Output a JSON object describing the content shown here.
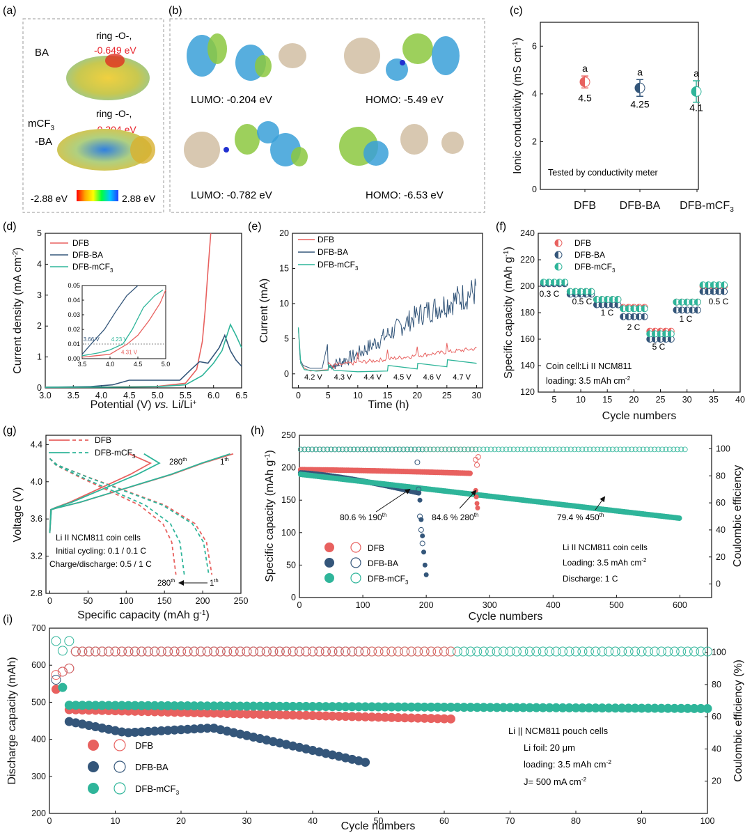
{
  "panels": {
    "a": {
      "letter": "(a)",
      "mol1": "BA",
      "mol2_line1": "mCF",
      "mol2_sub": "3",
      "mol2_line2": "-BA",
      "ring1": "ring -O-,",
      "ring1_val": "-0.649 eV",
      "ring2": "ring -O-,",
      "ring2_val": "-0.304 eV",
      "scale_min": "-2.88 eV",
      "scale_max": "2.88 eV"
    },
    "b": {
      "letter": "(b)",
      "labels": [
        "LUMO:  -0.204 eV",
        "HOMO:  -5.49 eV",
        "LUMO:  -0.782 eV",
        "HOMO:  -6.53 eV"
      ]
    },
    "c": {
      "letter": "(c)",
      "note": "Tested by conductivity meter",
      "mark": "a"
    },
    "d": {
      "letter": "(d)"
    },
    "e": {
      "letter": "(e)"
    },
    "f": {
      "letter": "(f)"
    },
    "g": {
      "letter": "(g)"
    },
    "h": {
      "letter": "(h)"
    },
    "i": {
      "letter": "(i)"
    }
  },
  "legends": {
    "DFB": "DFB",
    "DFB_BA": "DFB-BA",
    "DFB_mCF3_base": "DFB-mCF",
    "sub3": "3"
  },
  "chart_data": [
    {
      "id": "c",
      "type": "scatter",
      "categories": [
        "DFB",
        "DFB-BA",
        "DFB-mCF3"
      ],
      "values": [
        4.5,
        4.25,
        4.1
      ],
      "errors": [
        0.25,
        0.35,
        0.45
      ],
      "value_labels": [
        "4.5",
        "4.25",
        "4.1"
      ],
      "ylabel": "Ionic conductivity (mS cm",
      "ylabel_sup": "-1",
      "ylabel_close": ")",
      "ylim": [
        0,
        7
      ],
      "yticks": [
        "0",
        "2",
        "4",
        "6"
      ],
      "colors": [
        "#e8615f",
        "#34567a",
        "#2fb59a"
      ]
    },
    {
      "id": "d",
      "type": "line",
      "xlabel_a": "Potential (V) ",
      "xlabel_b": "vs.",
      "xlabel_c": " Li/Li",
      "xlabel_sup": "+",
      "ylabel": "Current density (mA cm",
      "ylabel_sup": "-2",
      "ylabel_close": ")",
      "xlim": [
        3.0,
        6.5
      ],
      "ylim": [
        0,
        5
      ],
      "xticks": [
        "3.0",
        "3.5",
        "4.0",
        "4.5",
        "5.0",
        "5.5",
        "6.0",
        "6.5"
      ],
      "yticks": [
        "0",
        "1",
        "2",
        "3",
        "4",
        "5"
      ],
      "series": [
        {
          "name": "DFB",
          "color": "#e8615f",
          "x": [
            3.0,
            4.0,
            5.0,
            5.5,
            5.7,
            5.8,
            5.85,
            5.9,
            5.95
          ],
          "y": [
            0.02,
            0.03,
            0.05,
            0.15,
            0.6,
            1.5,
            2.5,
            3.8,
            5.0
          ]
        },
        {
          "name": "DFB-BA",
          "color": "#34567a",
          "x": [
            3.0,
            3.8,
            4.2,
            4.5,
            5.0,
            5.4,
            5.6,
            5.75,
            5.9,
            6.1,
            6.2,
            6.3,
            6.4,
            6.5
          ],
          "y": [
            0.02,
            0.04,
            0.1,
            0.25,
            0.25,
            0.25,
            0.6,
            0.85,
            0.8,
            1.3,
            1.7,
            1.2,
            0.9,
            0.7
          ]
        },
        {
          "name": "DFB-mCF3",
          "color": "#2fb59a",
          "x": [
            3.0,
            4.5,
            5.0,
            5.5,
            5.8,
            6.0,
            6.15,
            6.3,
            6.4,
            6.5
          ],
          "y": [
            0.02,
            0.03,
            0.04,
            0.1,
            0.4,
            0.8,
            1.2,
            2.05,
            1.7,
            1.3
          ]
        }
      ],
      "inset": {
        "xlim": [
          3.5,
          5.0
        ],
        "ylim": [
          0,
          0.05
        ],
        "xticks": [
          "3.5",
          "4.0",
          "4.5",
          "5.0"
        ],
        "yticks": [
          "0.00",
          "0.01",
          "0.02",
          "0.03",
          "0.04",
          "0.05"
        ],
        "annotations": [
          "3.66 V",
          "4.23 V",
          "4.31 V"
        ]
      }
    },
    {
      "id": "e",
      "type": "line",
      "xlabel": "Time (h)",
      "ylabel": "Current (mA)",
      "xlim": [
        -1,
        31
      ],
      "ylim": [
        -2,
        20
      ],
      "xticks": [
        "0",
        "5",
        "10",
        "15",
        "20",
        "25",
        "30"
      ],
      "yticks": [
        "0",
        "5",
        "10",
        "15",
        "20"
      ],
      "step_labels": [
        "4.2 V",
        "4.3 V",
        "4.4 V",
        "4.5 V",
        "4.6 V",
        "4.7 V"
      ],
      "series": [
        {
          "name": "DFB"
        },
        {
          "name": "DFB-BA"
        },
        {
          "name": "DFB-mCF3"
        }
      ]
    },
    {
      "id": "f",
      "type": "scatter",
      "xlabel": "Cycle numbers",
      "ylabel": "Specific capacity (mAh g",
      "ylabel_sup": "-1",
      "ylabel_close": ")",
      "xlim": [
        2,
        40
      ],
      "ylim": [
        120,
        240
      ],
      "xticks": [
        "5",
        "10",
        "15",
        "20",
        "25",
        "30",
        "35",
        "40"
      ],
      "yticks": [
        "120",
        "140",
        "160",
        "180",
        "200",
        "220",
        "240"
      ],
      "rate_labels": [
        "0.3 C",
        "0.5 C",
        "1 C",
        "2 C",
        "5 C",
        "1 C",
        "0.5 C"
      ],
      "note1": "Coin cell:Li II NCM811",
      "note2": "loading: 3.5 mAh cm",
      "note2_sup": "-2",
      "series": [
        {
          "name": "DFB",
          "color": "#e8615f",
          "values": [
            202,
            196,
            190,
            184,
            166,
            188,
            200
          ]
        },
        {
          "name": "DFB-BA",
          "color": "#34567a",
          "values": [
            202,
            194,
            186,
            177,
            160,
            182,
            196
          ]
        },
        {
          "name": "DFB-mCF3",
          "color": "#2fb59a",
          "values": [
            203,
            196,
            190,
            183,
            164,
            188,
            201
          ]
        }
      ]
    },
    {
      "id": "g",
      "type": "line",
      "xlabel": "Specific capacity (mAh g",
      "xlabel_sup": "-1",
      "xlabel_close": ")",
      "ylabel": "Voltage (V)",
      "xlim": [
        -5,
        250
      ],
      "ylim": [
        2.8,
        4.5
      ],
      "xticks": [
        "0",
        "50",
        "100",
        "150",
        "200",
        "250"
      ],
      "yticks": [
        "2.8",
        "3.2",
        "3.6",
        "4.0",
        "4.4"
      ],
      "label_280": "280",
      "label_280_sup": "th",
      "label_1": "1",
      "label_1_sup": "th",
      "note1": "Li II NCM811 coin cells",
      "note2": "Initial cycling: 0.1 / 0.1 C",
      "note3": "Charge/discharge: 0.5 / 1 C",
      "series": [
        {
          "name": "DFB"
        },
        {
          "name": "DFB-mCF3"
        }
      ]
    },
    {
      "id": "h",
      "type": "scatter",
      "xlabel": "Cycle numbers",
      "ylabel": "Specific capacity (mAh g",
      "ylabel_sup": "-1",
      "ylabel_close": ")",
      "y2label": "Coulombic efficiency",
      "xlim": [
        0,
        650
      ],
      "ylim": [
        0,
        250
      ],
      "y2lim": [
        -10,
        110
      ],
      "xticks": [
        "0",
        "100",
        "200",
        "300",
        "400",
        "500",
        "600"
      ],
      "yticks": [
        "0",
        "50",
        "100",
        "150",
        "200",
        "250"
      ],
      "y2ticks": [
        "0",
        "20",
        "40",
        "60",
        "80",
        "100"
      ],
      "ann1": "80.6 % 190",
      "ann2": "84.6 % 280",
      "ann3": "79.4 % 450",
      "ann_sup": "th",
      "note1": "Li II NCM811 coin cells",
      "note2": "Loading: 3.5 mAh cm",
      "note2_sup": "-2",
      "note3": "Discharge: 1 C",
      "series": [
        {
          "name": "DFB",
          "color": "#e8615f",
          "end_cycle": 280,
          "start_cap": 197,
          "cap_at_end": 160
        },
        {
          "name": "DFB-BA",
          "color": "#34567a",
          "end_cycle": 200,
          "start_cap": 192,
          "cap_at_end": 40
        },
        {
          "name": "DFB-mCF3",
          "color": "#2fb59a",
          "end_cycle": 610,
          "start_cap": 190,
          "cap_at_end": 121
        }
      ]
    },
    {
      "id": "i",
      "type": "scatter",
      "xlabel": "Cycle numbers",
      "ylabel": "Discharge capacity (mAh)",
      "y2label": "Coulombic efficiency (%)",
      "xlim": [
        0,
        100
      ],
      "ylim": [
        200,
        700
      ],
      "y2lim": [
        0,
        115
      ],
      "xticks": [
        "0",
        "10",
        "20",
        "30",
        "40",
        "50",
        "60",
        "70",
        "80",
        "90",
        "100"
      ],
      "yticks": [
        "200",
        "300",
        "400",
        "500",
        "600",
        "700"
      ],
      "y2ticks": [
        "20",
        "40",
        "60",
        "80",
        "100"
      ],
      "note1": "Li || NCM811 pouch cells",
      "note2": "Li foil: 20 μm",
      "note3": "loading: 3.5 mAh cm",
      "note3_sup": "-2",
      "note4": "J= 500 mA cm",
      "note4_sup": "-2",
      "series": [
        {
          "name": "DFB",
          "color": "#e8615f",
          "end_cycle": 61,
          "start_cap": 480,
          "end_cap": 455
        },
        {
          "name": "DFB-BA",
          "color": "#34567a",
          "end_cycle": 48,
          "start_cap": 448,
          "end_cap": 338
        },
        {
          "name": "DFB-mCF3",
          "color": "#2fb59a",
          "end_cycle": 100,
          "start_cap": 492,
          "end_cap": 483
        }
      ]
    }
  ]
}
